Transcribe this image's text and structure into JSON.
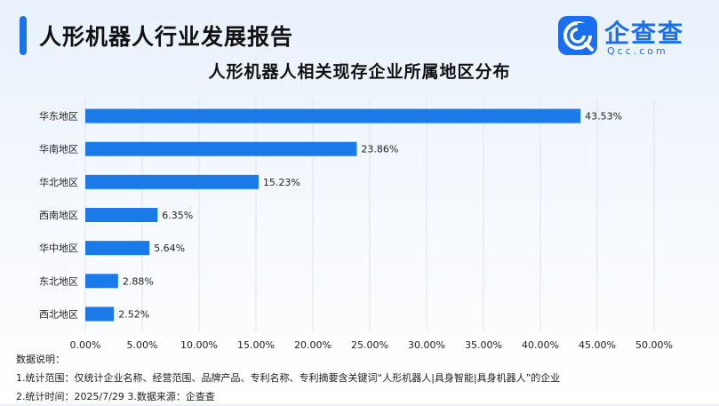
{
  "header": {
    "title": "人形机器人行业发展报告"
  },
  "logo": {
    "name": "企查查",
    "domain": "Qcc.com",
    "icon": "qcc-logo-icon"
  },
  "colors": {
    "accent": "#1a73e8",
    "bar": "#1a7be8"
  },
  "chart_data": {
    "type": "bar",
    "orientation": "horizontal",
    "title": "人形机器人相关现存企业所属地区分布",
    "categories": [
      "华东地区",
      "华南地区",
      "华北地区",
      "西南地区",
      "华中地区",
      "东北地区",
      "西北地区"
    ],
    "values": [
      43.53,
      23.86,
      15.23,
      6.35,
      5.64,
      2.88,
      2.52
    ],
    "value_labels": [
      "43.53%",
      "23.86%",
      "15.23%",
      "6.35%",
      "5.64%",
      "2.88%",
      "2.52%"
    ],
    "xlim": [
      0,
      50
    ],
    "xticks": [
      0,
      5,
      10,
      15,
      20,
      25,
      30,
      35,
      40,
      45,
      50
    ],
    "xtick_labels": [
      "0.00%",
      "5.00%",
      "10.00%",
      "15.00%",
      "20.00%",
      "25.00%",
      "30.00%",
      "35.00%",
      "40.00%",
      "45.00%",
      "50.00%"
    ],
    "grid": true,
    "xlabel": "",
    "ylabel": ""
  },
  "notes": {
    "heading": "数据说明：",
    "line1": "1.统计范围：仅统计企业名称、经营范围、品牌产品、专利名称、专利摘要含关键词“人形机器人|具身智能|具身机器人”的企业",
    "line2": "2.统计时间：2025/7/29  3.数据来源：企查查"
  }
}
